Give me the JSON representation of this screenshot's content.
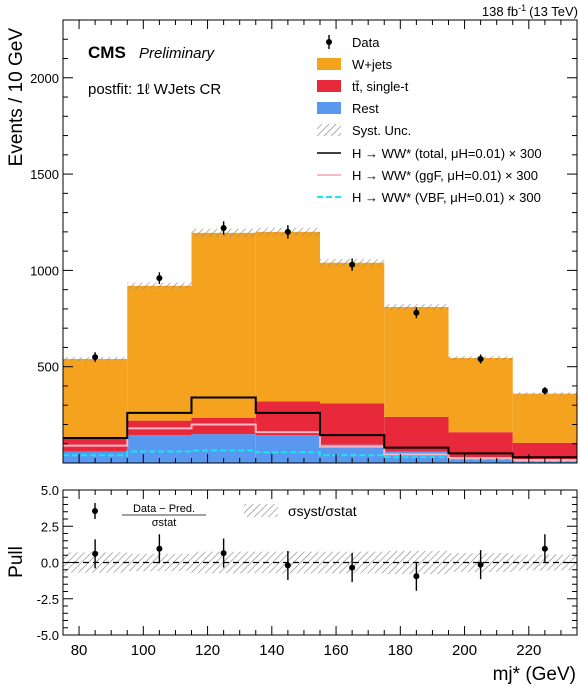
{
  "header": {
    "lumi": "138 fb",
    "lumi_exp": "-1",
    "energy": "(13 TeV)",
    "cms": "CMS",
    "preliminary": "Preliminary",
    "region": "postfit: 1ℓ WJets CR"
  },
  "colors": {
    "wjets": "#f5a21f",
    "ttbar": "#e8293c",
    "rest": "#5a97ee",
    "hww_total": "#000000",
    "hww_ggf": "#f8b6c4",
    "hww_vbf": "#18e6f0"
  },
  "legend": {
    "data": "Data",
    "wjets": "W+jets",
    "ttbar": "tt̄, single-t",
    "rest": "Rest",
    "syst": "Syst. Unc.",
    "hww_total": "H → WW* (total, μH=0.01) × 300",
    "hww_ggf": "H → WW* (ggF, μH=0.01) × 300",
    "hww_vbf": "H → WW* (VBF, μH=0.01) × 300"
  },
  "pull_legend": {
    "numerator": "Data − Pred.",
    "denominator": "σstat",
    "syst_ratio": "σsyst/σstat"
  },
  "chart_data": [
    {
      "type": "bar",
      "stacked": true,
      "ylabel": "Events / 10 GeV",
      "xlim": [
        75,
        235
      ],
      "ylim": [
        0,
        2300
      ],
      "yticks": [
        500,
        1000,
        1500,
        2000
      ],
      "bin_edges": [
        75,
        95,
        115,
        135,
        155,
        175,
        195,
        215,
        235
      ],
      "series": [
        {
          "name": "Rest",
          "values": [
            60,
            145,
            150,
            145,
            95,
            60,
            30,
            20
          ]
        },
        {
          "name": "tt̄, single-t",
          "values": [
            75,
            75,
            85,
            175,
            215,
            180,
            130,
            85
          ]
        },
        {
          "name": "W+jets",
          "values": [
            405,
            700,
            960,
            880,
            730,
            570,
            385,
            255
          ]
        }
      ],
      "hww_total": [
        130,
        260,
        340,
        260,
        145,
        80,
        50,
        30
      ],
      "hww_ggf": [
        90,
        180,
        200,
        160,
        85,
        45,
        25,
        15
      ],
      "hww_vbf": [
        40,
        60,
        65,
        55,
        40,
        30,
        20,
        10
      ],
      "data_x": [
        85,
        105,
        125,
        145,
        165,
        185,
        205,
        225
      ],
      "data_y": [
        550,
        960,
        1220,
        1200,
        1030,
        780,
        540,
        375
      ],
      "data_err": [
        25,
        30,
        35,
        35,
        32,
        28,
        23,
        19
      ],
      "syst_rel": 0.018
    },
    {
      "type": "scatter",
      "xlabel": "mj* (GeV)",
      "ylabel": "Pull",
      "xlim": [
        75,
        235
      ],
      "ylim": [
        -5,
        5
      ],
      "yticks": [
        -5.0,
        -2.5,
        0.0,
        2.5,
        5.0
      ],
      "xticks": [
        80,
        100,
        120,
        140,
        160,
        180,
        200,
        220
      ],
      "x": [
        85,
        105,
        125,
        145,
        165,
        185,
        205,
        225
      ],
      "y": [
        0.6,
        0.95,
        0.65,
        -0.2,
        -0.35,
        -0.95,
        -0.15,
        0.95
      ],
      "err": [
        1.0,
        1.0,
        1.0,
        1.0,
        1.0,
        1.0,
        1.0,
        1.0
      ],
      "syst_band": [
        0.7,
        0.6,
        0.75,
        0.75,
        0.75,
        0.8,
        0.65,
        0.55
      ]
    }
  ]
}
